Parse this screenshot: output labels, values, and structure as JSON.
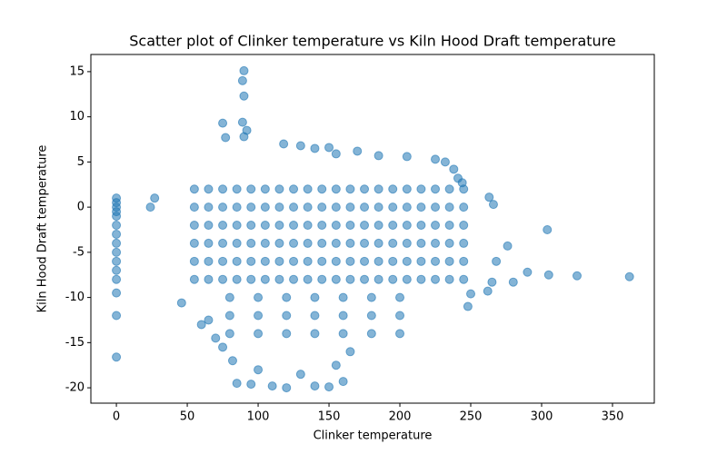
{
  "chart_data": {
    "type": "scatter",
    "title": "Scatter plot of Clinker temperature vs Kiln Hood Draft temperature",
    "x_label": "Clinker temperature",
    "y_label": "Kiln Hood Draft temperature",
    "color": "#1f77b4",
    "xlim": [
      -18,
      379.5
    ],
    "ylim": [
      -21.7,
      16.9
    ],
    "xticks": [
      0,
      50,
      100,
      150,
      200,
      250,
      300,
      350
    ],
    "yticks": [
      -20,
      -15,
      -10,
      -5,
      0,
      5,
      10,
      15
    ],
    "x": [
      0,
      0,
      0,
      0,
      0,
      0,
      0,
      0,
      0,
      0,
      0,
      0,
      0,
      0,
      0,
      24,
      27,
      46,
      90,
      89,
      90,
      89,
      90,
      92,
      75,
      77,
      118,
      130,
      140,
      150,
      170,
      155,
      185,
      205,
      225,
      232,
      238,
      241,
      244,
      263,
      266,
      268,
      276,
      280,
      290,
      304,
      305,
      325,
      362,
      265,
      262,
      250,
      248,
      85,
      95,
      110,
      120,
      140,
      150,
      160,
      82,
      100,
      130,
      155,
      165,
      70,
      60,
      65,
      75,
      55,
      65,
      75,
      85,
      95,
      105,
      115,
      125,
      135,
      145,
      155,
      165,
      175,
      185,
      195,
      205,
      215,
      225,
      235,
      245,
      55,
      65,
      75,
      85,
      95,
      105,
      115,
      125,
      135,
      145,
      155,
      165,
      175,
      185,
      195,
      205,
      215,
      225,
      235,
      245,
      55,
      65,
      75,
      85,
      95,
      105,
      115,
      125,
      135,
      145,
      155,
      165,
      175,
      185,
      195,
      205,
      215,
      225,
      235,
      245,
      55,
      65,
      75,
      85,
      95,
      105,
      115,
      125,
      135,
      145,
      155,
      165,
      175,
      185,
      195,
      205,
      215,
      225,
      235,
      245,
      55,
      65,
      75,
      85,
      95,
      105,
      115,
      125,
      135,
      145,
      155,
      165,
      175,
      185,
      195,
      205,
      215,
      225,
      235,
      245,
      55,
      65,
      75,
      85,
      95,
      105,
      115,
      125,
      135,
      145,
      155,
      165,
      175,
      185,
      195,
      205,
      215,
      225,
      235,
      245,
      80,
      100,
      120,
      140,
      160,
      180,
      200,
      80,
      100,
      120,
      140,
      160,
      180,
      200,
      80,
      100,
      120,
      140,
      160,
      180,
      200
    ],
    "values": [
      1,
      0.5,
      0,
      -0.5,
      -1,
      -2,
      -3,
      -4,
      -5,
      -6,
      -7,
      -8,
      -9.5,
      -12,
      -16.6,
      0,
      1,
      -10.6,
      15.1,
      14,
      12.3,
      9.4,
      7.8,
      8.5,
      9.3,
      7.7,
      7,
      6.8,
      6.5,
      6.6,
      6.2,
      5.9,
      5.7,
      5.6,
      5.3,
      5,
      4.2,
      3.2,
      2.7,
      1.1,
      0.3,
      -6,
      -4.3,
      -8.3,
      -7.2,
      -2.5,
      -7.5,
      -7.6,
      -7.7,
      -8.3,
      -9.3,
      -9.6,
      -11,
      -19.5,
      -19.6,
      -19.8,
      -20,
      -19.8,
      -19.9,
      -19.3,
      -17,
      -18,
      -18.5,
      -17.5,
      -16,
      -14.5,
      -13,
      -12.5,
      -15.5,
      2,
      2,
      2,
      2,
      2,
      2,
      2,
      2,
      2,
      2,
      2,
      2,
      2,
      2,
      2,
      2,
      2,
      2,
      2,
      2,
      0,
      0,
      0,
      0,
      0,
      0,
      0,
      0,
      0,
      0,
      0,
      0,
      0,
      0,
      0,
      0,
      0,
      0,
      0,
      0,
      -2,
      -2,
      -2,
      -2,
      -2,
      -2,
      -2,
      -2,
      -2,
      -2,
      -2,
      -2,
      -2,
      -2,
      -2,
      -2,
      -2,
      -2,
      -2,
      -2,
      -4,
      -4,
      -4,
      -4,
      -4,
      -4,
      -4,
      -4,
      -4,
      -4,
      -4,
      -4,
      -4,
      -4,
      -4,
      -4,
      -4,
      -4,
      -4,
      -4,
      -6,
      -6,
      -6,
      -6,
      -6,
      -6,
      -6,
      -6,
      -6,
      -6,
      -6,
      -6,
      -6,
      -6,
      -6,
      -6,
      -6,
      -6,
      -6,
      -6,
      -8,
      -8,
      -8,
      -8,
      -8,
      -8,
      -8,
      -8,
      -8,
      -8,
      -8,
      -8,
      -8,
      -8,
      -8,
      -8,
      -8,
      -8,
      -8,
      -8,
      -10,
      -10,
      -10,
      -10,
      -10,
      -10,
      -10,
      -12,
      -12,
      -12,
      -12,
      -12,
      -12,
      -12,
      -14,
      -14,
      -14,
      -14,
      -14,
      -14,
      -14
    ]
  }
}
